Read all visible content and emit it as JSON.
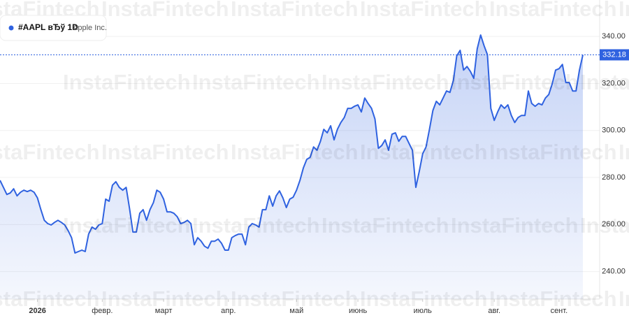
{
  "legend_symbol": "#AAPL вЂў 1D",
  "legend_name": "Apple Inc.",
  "watermark": "InstaFintech",
  "chart_data": {
    "type": "line",
    "color": "#2f62e0",
    "values": [
      278.8,
      275.8,
      272.8,
      273.4,
      275.2,
      272.2,
      273.7,
      274.6,
      274.0,
      274.6,
      273.7,
      271.3,
      266.3,
      261.8,
      260.4,
      259.8,
      260.9,
      261.8,
      260.9,
      259.8,
      257.4,
      254.4,
      247.9,
      248.5,
      249.1,
      248.5,
      255.9,
      258.9,
      258.0,
      259.8,
      260.4,
      270.8,
      269.9,
      276.7,
      278.2,
      275.8,
      274.6,
      275.8,
      266.9,
      256.8,
      256.8,
      264.8,
      266.3,
      261.8,
      266.3,
      269.3,
      274.6,
      273.7,
      270.8,
      265.4,
      265.4,
      264.8,
      263.3,
      260.4,
      260.9,
      261.8,
      260.4,
      251.4,
      254.4,
      252.9,
      250.8,
      249.9,
      252.9,
      252.9,
      253.8,
      252.0,
      249.1,
      249.1,
      254.4,
      255.3,
      255.9,
      255.9,
      251.4,
      258.9,
      260.4,
      259.8,
      258.9,
      266.3,
      266.3,
      272.2,
      267.8,
      272.2,
      274.3,
      271.3,
      267.2,
      270.8,
      271.6,
      274.6,
      278.8,
      284.1,
      287.7,
      288.6,
      293.0,
      291.6,
      295.4,
      300.5,
      299.0,
      302.0,
      296.0,
      300.5,
      303.4,
      305.5,
      309.4,
      309.4,
      310.3,
      310.9,
      307.9,
      313.8,
      311.5,
      309.4,
      304.9,
      292.4,
      293.6,
      296.0,
      291.6,
      298.4,
      299.0,
      295.4,
      297.5,
      297.5,
      294.5,
      291.6,
      275.8,
      282.6,
      290.1,
      293.0,
      300.5,
      308.5,
      312.4,
      310.9,
      313.8,
      316.8,
      316.2,
      321.3,
      331.7,
      334.1,
      325.7,
      327.2,
      325.1,
      322.2,
      334.7,
      340.6,
      336.1,
      332.3,
      309.4,
      304.3,
      307.9,
      310.9,
      309.4,
      310.9,
      306.4,
      303.4,
      305.5,
      306.4,
      306.4,
      316.8,
      311.5,
      310.3,
      311.5,
      310.9,
      313.8,
      315.3,
      319.8,
      325.7,
      326.3,
      328.1,
      320.4,
      320.4,
      316.8,
      316.8,
      325.7,
      332.18
    ],
    "xlim": [
      0,
      171
    ],
    "xticks": [
      {
        "value": 11,
        "label": "2026"
      },
      {
        "value": 30,
        "label": "февр."
      },
      {
        "value": 48,
        "label": "март"
      },
      {
        "value": 67,
        "label": "апр."
      },
      {
        "value": 87,
        "label": "май"
      },
      {
        "value": 105,
        "label": "июнь"
      },
      {
        "value": 124,
        "label": "июль"
      },
      {
        "value": 145,
        "label": "авг."
      },
      {
        "value": 164,
        "label": "сент."
      }
    ],
    "ylim": [
      228.3,
      355.5
    ],
    "yticks": [
      {
        "value": 240,
        "label": "240.00"
      },
      {
        "value": 260,
        "label": "260.00"
      },
      {
        "value": 280,
        "label": "280.00"
      },
      {
        "value": 300,
        "label": "300.00"
      },
      {
        "value": 320,
        "label": "320.00"
      },
      {
        "value": 340,
        "label": "340.00"
      }
    ],
    "grid": true
  }
}
